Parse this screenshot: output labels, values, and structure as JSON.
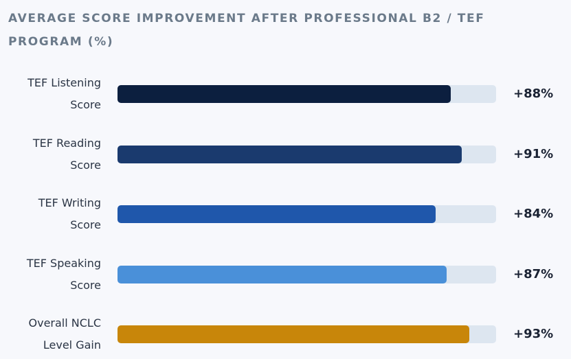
{
  "chart_data": {
    "type": "bar",
    "orientation": "horizontal",
    "title": "AVERAGE SCORE IMPROVEMENT AFTER PROFESSIONAL B2 / TEF PROGRAM (%)",
    "categories": [
      "TEF Listening Score",
      "TEF Reading Score",
      "TEF Writing Score",
      "TEF Speaking Score",
      "Overall NCLC Level Gain"
    ],
    "values": [
      88,
      91,
      84,
      87,
      93
    ],
    "value_labels": [
      "+88%",
      "+91%",
      "+84%",
      "+87%",
      "+93%"
    ],
    "colors": [
      "#0c1f3f",
      "#1a3a6e",
      "#1f57ab",
      "#4a90d9",
      "#c8860a"
    ],
    "track_color": "#dde6f0",
    "xlim": [
      0,
      100
    ]
  }
}
